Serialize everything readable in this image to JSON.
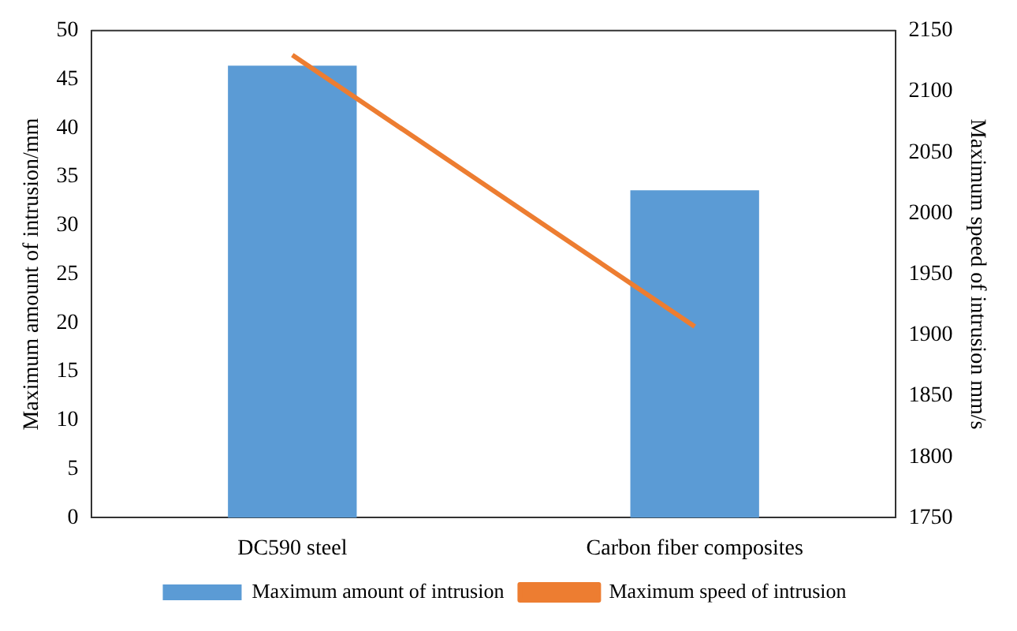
{
  "chart_data": {
    "type": "bar",
    "categories": [
      "DC590 steel",
      "Carbon fiber composites"
    ],
    "ylabel": "Maximum amount of intrusion/mm",
    "y2label": "Maximum speed of intrusion mm/s",
    "ylim": [
      0,
      50
    ],
    "yticks": [
      0,
      5,
      10,
      15,
      20,
      25,
      30,
      35,
      40,
      45,
      50
    ],
    "y2lim": [
      1750,
      2150
    ],
    "y2ticks": [
      1750,
      1800,
      1850,
      1900,
      1950,
      2000,
      2050,
      2100,
      2150
    ],
    "legend": "bottom",
    "grid": false,
    "series": [
      {
        "name": "Maximum amount of intrusion",
        "color": "#5b9bd5",
        "values": [
          46.4,
          33.6
        ]
      },
      {
        "name": "Maximum speed of intrusion",
        "type": "line",
        "axis": "y2",
        "color": "#ed7d31",
        "values": [
          2130,
          1907
        ]
      }
    ]
  }
}
